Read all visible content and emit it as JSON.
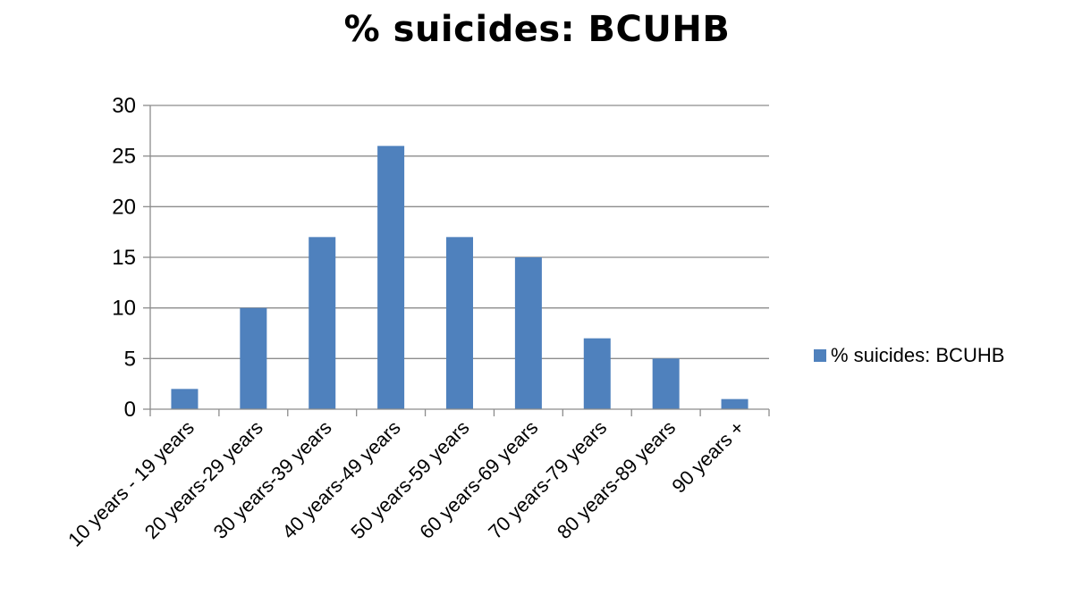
{
  "chart_data": {
    "type": "bar",
    "title": "% suicides: BCUHB",
    "categories": [
      "10 years - 19 years",
      "20 years-29 years",
      "30 years-39 years",
      "40 years-49 years",
      "50 years-59 years",
      "60 years-69 years",
      "70 years-79 years",
      "80 years-89 years",
      "90 years +"
    ],
    "series": [
      {
        "name": "% suicides: BCUHB",
        "values": [
          2,
          10,
          17,
          26,
          17,
          15,
          7,
          5,
          1
        ],
        "color": "#4F81BD"
      }
    ],
    "ylim": [
      0,
      30
    ],
    "yticks": [
      0,
      5,
      10,
      15,
      20,
      25,
      30
    ],
    "xlabel": "",
    "ylabel": "",
    "grid": true,
    "legend_position": "right"
  }
}
